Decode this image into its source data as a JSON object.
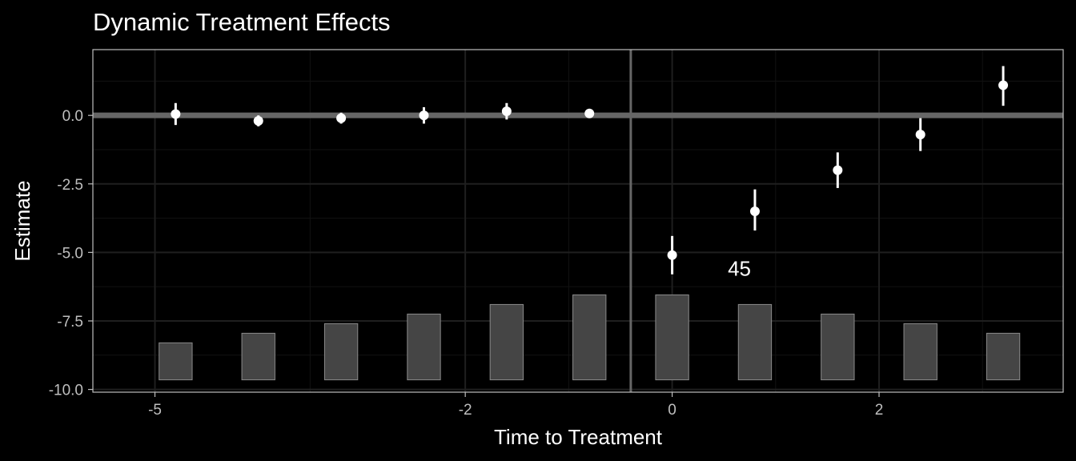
{
  "chart_data": {
    "type": "scatter",
    "title": "Dynamic Treatment Effects",
    "xlabel": "Time to Treatment",
    "ylabel": "Estimate",
    "x_ticks": [
      -5,
      -2,
      0,
      2
    ],
    "x_tick_labels": [
      "-5",
      "-2",
      "0",
      "2"
    ],
    "y_ticks": [
      0,
      -2.5,
      -5,
      -7.5,
      -10
    ],
    "y_tick_labels": [
      "0.0",
      "-2.5",
      "-5.0",
      "-7.5",
      "-10.0"
    ],
    "ylim": [
      -10.1,
      2.4
    ],
    "xlim": [
      -5.6,
      3.78
    ],
    "grid": true,
    "reference_lines": {
      "horizontal_y": 0,
      "vertical_x": -0.4
    },
    "points": [
      {
        "x": -4.8,
        "y": 0.05,
        "lower": -0.35,
        "upper": 0.45
      },
      {
        "x": -4.0,
        "y": -0.2,
        "lower": -0.4,
        "upper": 0.0
      },
      {
        "x": -3.2,
        "y": -0.1,
        "lower": -0.3,
        "upper": 0.1
      },
      {
        "x": -2.4,
        "y": 0.0,
        "lower": -0.3,
        "upper": 0.3
      },
      {
        "x": -1.6,
        "y": 0.15,
        "lower": -0.15,
        "upper": 0.45
      },
      {
        "x": -0.8,
        "y": 0.07,
        "lower": -0.08,
        "upper": 0.22
      },
      {
        "x": 0.0,
        "y": -5.1,
        "lower": -5.8,
        "upper": -4.4
      },
      {
        "x": 0.8,
        "y": -3.5,
        "lower": -4.2,
        "upper": -2.7
      },
      {
        "x": 1.6,
        "y": -2.0,
        "lower": -2.65,
        "upper": -1.35
      },
      {
        "x": 2.4,
        "y": -0.7,
        "lower": -1.3,
        "upper": -0.1
      },
      {
        "x": 3.2,
        "y": 1.1,
        "lower": 0.35,
        "upper": 1.8
      }
    ],
    "bars": [
      {
        "x": -4.8,
        "ymin": -9.65,
        "ymax": -8.3
      },
      {
        "x": -4.0,
        "ymin": -9.65,
        "ymax": -7.95
      },
      {
        "x": -3.2,
        "ymin": -9.65,
        "ymax": -7.6
      },
      {
        "x": -2.4,
        "ymin": -9.65,
        "ymax": -7.25
      },
      {
        "x": -1.6,
        "ymin": -9.65,
        "ymax": -6.9
      },
      {
        "x": -0.8,
        "ymin": -9.65,
        "ymax": -6.55
      },
      {
        "x": 0.0,
        "ymin": -9.65,
        "ymax": -6.55
      },
      {
        "x": 0.8,
        "ymin": -9.65,
        "ymax": -6.9
      },
      {
        "x": 1.6,
        "ymin": -9.65,
        "ymax": -7.25
      },
      {
        "x": 2.4,
        "ymin": -9.65,
        "ymax": -7.6
      },
      {
        "x": 3.2,
        "ymin": -9.65,
        "ymax": -7.95
      }
    ],
    "bar_width": 0.32,
    "annotation": {
      "text": "45",
      "x": 0.65,
      "y": -5.85
    },
    "colors": {
      "background": "#000000",
      "grid_major": "#1f1f1f",
      "grid_minor": "#121212",
      "panel_border": "#bfbfbf",
      "reference_line": "#666666",
      "points": "#ffffff",
      "bar_fill": "#454545",
      "bar_stroke": "#8a8a8a",
      "tick_text": "#bfbfbf",
      "title_text": "#ffffff"
    }
  }
}
